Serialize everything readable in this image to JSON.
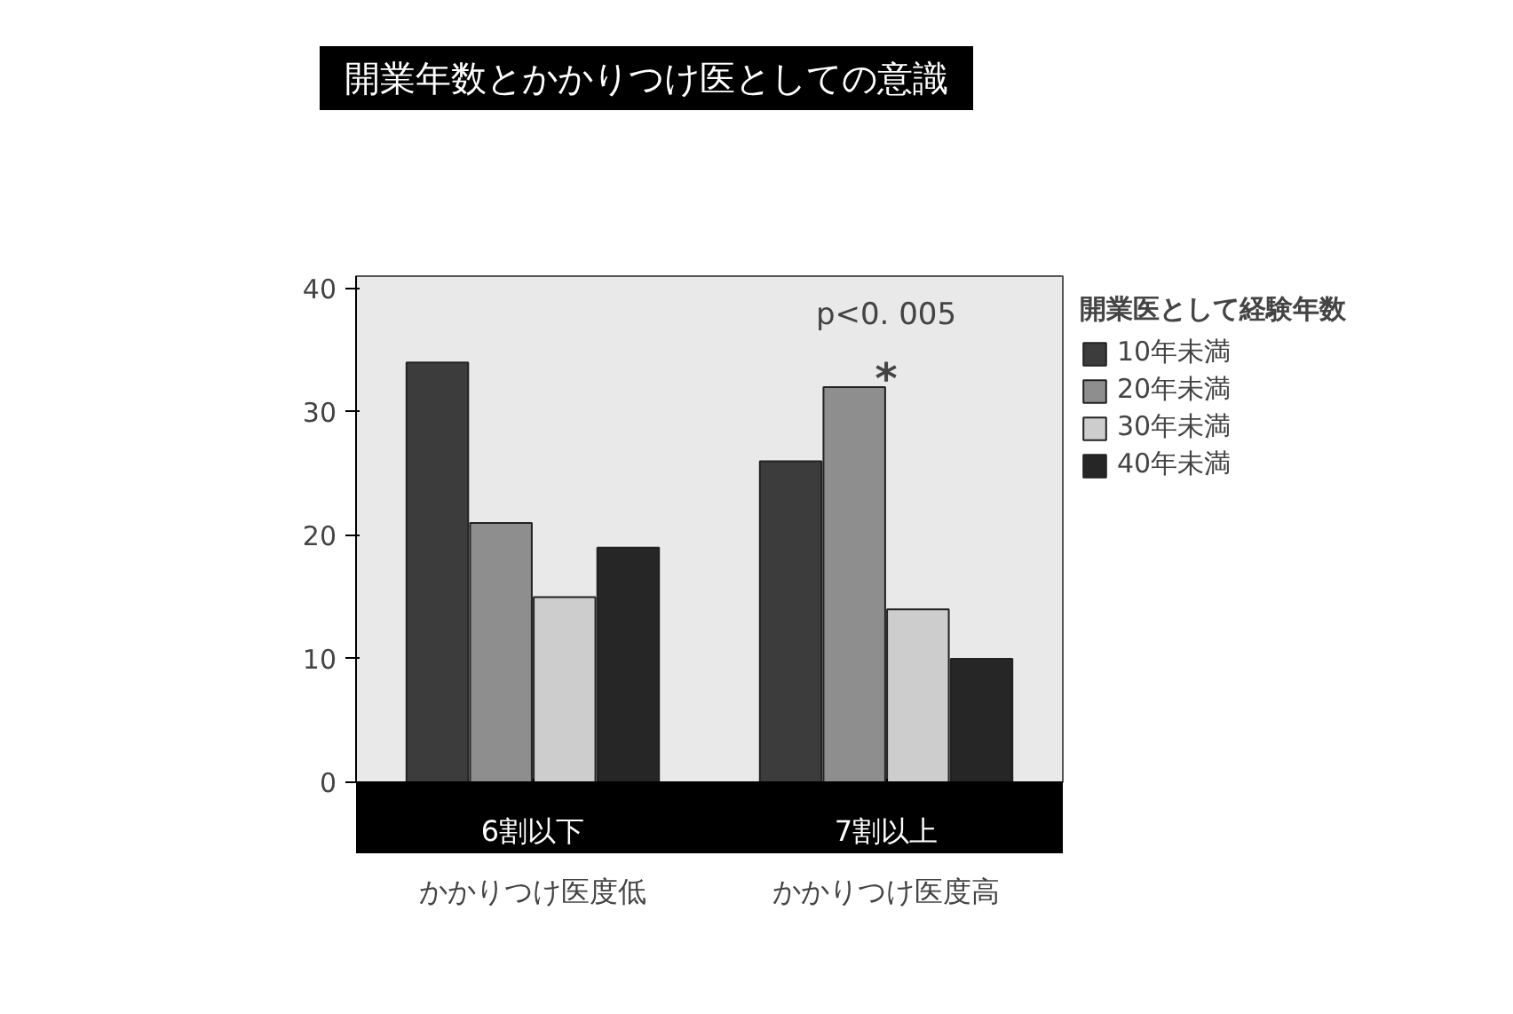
{
  "chart_data": {
    "type": "bar",
    "title": "開業年数とかかりつけ医としての意識",
    "categories": [
      "6割以下",
      "7割以上"
    ],
    "series": [
      {
        "name": "10年未満",
        "color": "#3c3c3c",
        "values": [
          34,
          26
        ]
      },
      {
        "name": "20年未満",
        "color": "#8e8e8e",
        "values": [
          21,
          32
        ]
      },
      {
        "name": "30年未満",
        "color": "#cdcdcd",
        "values": [
          15,
          14
        ]
      },
      {
        "name": "40年未満",
        "color": "#262626",
        "values": [
          19,
          10
        ]
      }
    ],
    "legend_title": "開業医として経験年数",
    "ylim": [
      0,
      41
    ],
    "yticks": [
      0,
      10,
      20,
      30,
      40
    ],
    "grid": false,
    "legend": "right",
    "annotations": [
      "p<0. 005",
      "*",
      "かかりつけ医度低",
      "かかりつけ医度高"
    ]
  }
}
